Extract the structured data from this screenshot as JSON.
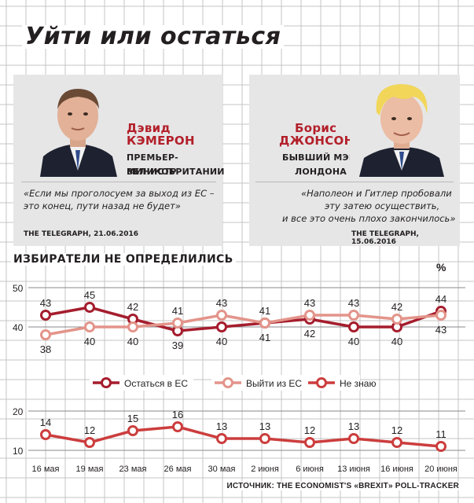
{
  "title": "Уйти или остаться",
  "left_card": {
    "first_name": "Дэвид",
    "last_name": "КЭМЕРОН",
    "role_line1": "ПРЕМЬЕР-МИНИСТР",
    "role_line2": "ВЕЛИКОБРИТАНИИ",
    "quote_line1": "«Если мы проголосуем за выход из ЕС –",
    "quote_line2": "это конец, пути назад не будет»",
    "source": "THE TELEGRAPH, 21.06.2016"
  },
  "right_card": {
    "first_name": "Борис",
    "last_name": "ДЖОНСОН",
    "role_line1": "БЫВШИЙ МЭР",
    "role_line2": "ЛОНДОНА",
    "quote_line1": "«Наполеон и Гитлер пробовали",
    "quote_line2": "эту затею осуществить,",
    "quote_line3": "и все это очень плохо закончилось»",
    "source": "THE TELEGRAPH, 15.06.2016"
  },
  "chart_title": "ИЗБИРАТЕЛИ НЕ ОПРЕДЕЛИЛИСЬ",
  "unit": "%",
  "source_note": "ИСТОЧНИК: THE ECONOMIST'S «BREXIT» POLL-TRACKER",
  "colors": {
    "stay": "#a51d2d",
    "leave": "#e3948a",
    "unknown": "#cc3d3d",
    "grid": "#c4c4c6",
    "card_bg": "#e6e6e7"
  },
  "chart_data": {
    "type": "line",
    "categories": [
      "16 мая",
      "19 мая",
      "23 мая",
      "26 мая",
      "30 мая",
      "2 июня",
      "6 июня",
      "13 июня",
      "16 июня",
      "20 июня"
    ],
    "series": [
      {
        "name": "Остаться в ЕС",
        "values": [
          43,
          45,
          42,
          39,
          40,
          41,
          42,
          40,
          40,
          44
        ]
      },
      {
        "name": "Выйти из ЕС",
        "values": [
          38,
          40,
          40,
          41,
          43,
          41,
          43,
          43,
          42,
          43
        ]
      },
      {
        "name": "Не знаю",
        "values": [
          14,
          12,
          15,
          16,
          13,
          13,
          12,
          13,
          12,
          11
        ]
      }
    ],
    "upper_panel": {
      "y_ticks": [
        40,
        50
      ]
    },
    "lower_panel": {
      "y_ticks": [
        10,
        20
      ]
    },
    "legend_position": "center",
    "grid": true
  }
}
